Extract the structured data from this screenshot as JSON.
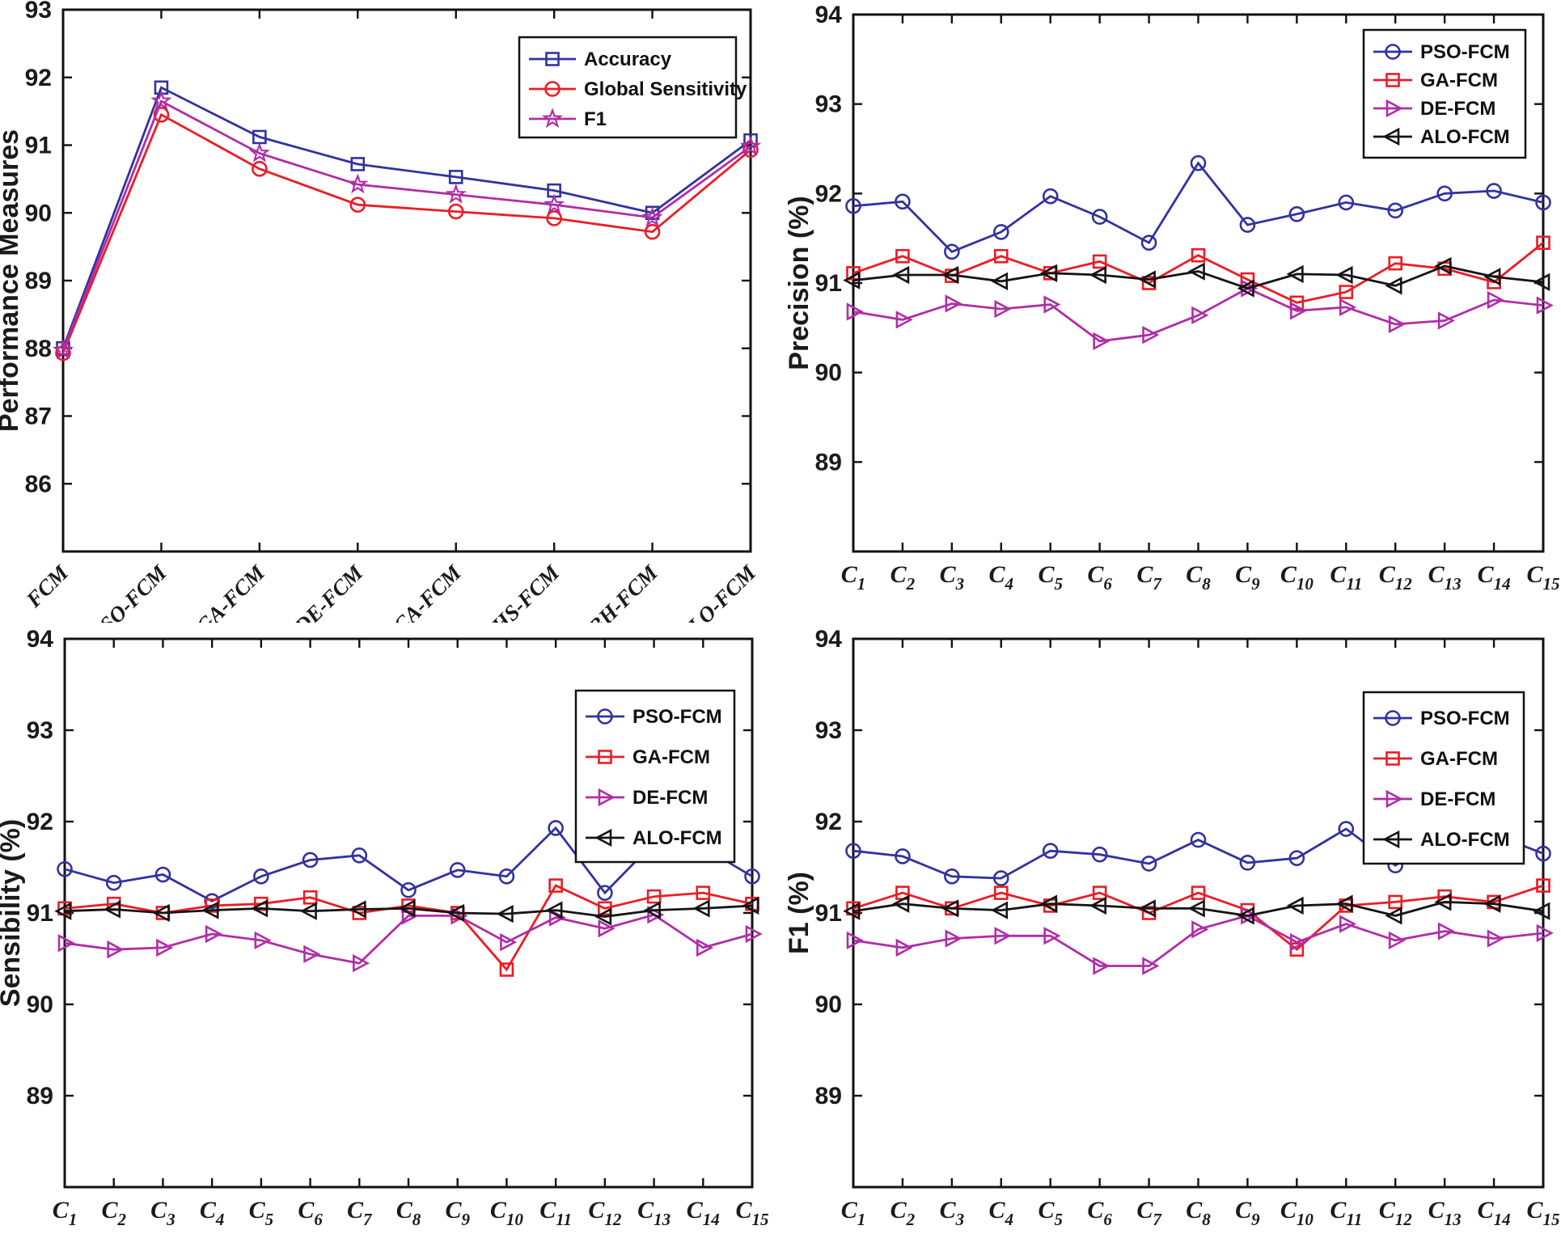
{
  "figure_background": "#ffffff",
  "colors": {
    "pso_fcm_blue": "#32329E",
    "ga_fcm_red": "#EC1C24",
    "de_fcm_magenta": "#B02DA8",
    "alo_fcm_black": "#141414",
    "axis": "#111111"
  },
  "chart_data": [
    {
      "id": "performance",
      "type": "line",
      "title": "",
      "ylabel": "Performance Measures",
      "xlabel": "",
      "categories": [
        "FCM",
        "PSO-FCM",
        "GA-FCM",
        "DE-FCM",
        "CA-FCM",
        "HS-FCM",
        "BH-FCM",
        "ALO-FCM"
      ],
      "ylim": [
        85,
        93
      ],
      "yticks": [
        86,
        87,
        88,
        89,
        90,
        91,
        92,
        93
      ],
      "grid": false,
      "legend_position": "upper-right-inside",
      "series": [
        {
          "name": "Accuracy",
          "color": "#32329E",
          "marker": "square",
          "values": [
            88.0,
            91.85,
            91.12,
            90.72,
            90.53,
            90.33,
            90.0,
            91.07
          ]
        },
        {
          "name": "Global Sensitivity",
          "color": "#EC1C24",
          "marker": "circle",
          "values": [
            87.93,
            91.45,
            90.65,
            90.12,
            90.02,
            89.92,
            89.72,
            90.93
          ]
        },
        {
          "name": "F1",
          "color": "#B02DA8",
          "marker": "star",
          "values": [
            87.97,
            91.65,
            90.88,
            90.42,
            90.27,
            90.12,
            89.93,
            90.98
          ]
        }
      ]
    },
    {
      "id": "precision",
      "type": "line",
      "title": "",
      "ylabel": "Precision (%)",
      "xlabel": "",
      "categories": [
        "C1",
        "C2",
        "C3",
        "C4",
        "C5",
        "C6",
        "C7",
        "C8",
        "C9",
        "C10",
        "C11",
        "C12",
        "C13",
        "C14",
        "C15"
      ],
      "ylim": [
        88,
        94
      ],
      "yticks": [
        89,
        90,
        91,
        92,
        93,
        94
      ],
      "grid": false,
      "legend_position": "upper-right-inside",
      "series": [
        {
          "name": "PSO-FCM",
          "color": "#32329E",
          "marker": "circle",
          "values": [
            91.86,
            91.91,
            91.35,
            91.57,
            91.97,
            91.74,
            91.45,
            92.34,
            91.65,
            91.77,
            91.9,
            91.81,
            92.0,
            92.03,
            91.9
          ]
        },
        {
          "name": "GA-FCM",
          "color": "#EC1C24",
          "marker": "square",
          "values": [
            91.11,
            91.3,
            91.08,
            91.3,
            91.11,
            91.24,
            91.0,
            91.31,
            91.04,
            90.78,
            90.9,
            91.22,
            91.16,
            91.01,
            91.45
          ]
        },
        {
          "name": "DE-FCM",
          "color": "#B02DA8",
          "marker": "triangle-right",
          "values": [
            90.68,
            90.59,
            90.77,
            90.71,
            90.76,
            90.35,
            90.42,
            90.64,
            90.94,
            90.69,
            90.73,
            90.54,
            90.58,
            90.81,
            90.75
          ]
        },
        {
          "name": "ALO-FCM",
          "color": "#141414",
          "marker": "triangle-left",
          "values": [
            91.03,
            91.09,
            91.09,
            91.02,
            91.11,
            91.09,
            91.04,
            91.13,
            90.94,
            91.1,
            91.09,
            90.97,
            91.19,
            91.07,
            91.01
          ]
        }
      ]
    },
    {
      "id": "sensibility",
      "type": "line",
      "title": "",
      "ylabel": "Sensibility (%)",
      "xlabel": "",
      "categories": [
        "C1",
        "C2",
        "C3",
        "C4",
        "C5",
        "C6",
        "C7",
        "C8",
        "C9",
        "C10",
        "C11",
        "C12",
        "C13",
        "C14",
        "C15"
      ],
      "ylim": [
        88,
        94
      ],
      "yticks": [
        89,
        90,
        91,
        92,
        93,
        94
      ],
      "grid": false,
      "legend_position": "upper-right-inside",
      "series": [
        {
          "name": "PSO-FCM",
          "color": "#32329E",
          "marker": "circle",
          "values": [
            91.48,
            91.33,
            91.42,
            91.13,
            91.4,
            91.58,
            91.63,
            91.25,
            91.47,
            91.4,
            91.93,
            91.22,
            91.77,
            91.72,
            91.4
          ]
        },
        {
          "name": "GA-FCM",
          "color": "#EC1C24",
          "marker": "square",
          "values": [
            91.05,
            91.1,
            91.0,
            91.08,
            91.1,
            91.17,
            91.0,
            91.08,
            91.0,
            90.38,
            91.3,
            91.05,
            91.18,
            91.22,
            91.1
          ]
        },
        {
          "name": "DE-FCM",
          "color": "#B02DA8",
          "marker": "triangle-right",
          "values": [
            90.67,
            90.6,
            90.62,
            90.77,
            90.7,
            90.55,
            90.45,
            90.97,
            90.97,
            90.68,
            90.95,
            90.83,
            90.98,
            90.62,
            90.77
          ]
        },
        {
          "name": "ALO-FCM",
          "color": "#141414",
          "marker": "triangle-left",
          "values": [
            91.02,
            91.04,
            91.0,
            91.03,
            91.05,
            91.02,
            91.04,
            91.05,
            91.0,
            90.99,
            91.03,
            90.96,
            91.03,
            91.05,
            91.08
          ]
        }
      ]
    },
    {
      "id": "f1",
      "type": "line",
      "title": "",
      "ylabel": "F1 (%)",
      "xlabel": "",
      "categories": [
        "C1",
        "C2",
        "C3",
        "C4",
        "C5",
        "C6",
        "C7",
        "C8",
        "C9",
        "C10",
        "C11",
        "C12",
        "C13",
        "C14",
        "C15"
      ],
      "ylim": [
        88,
        94
      ],
      "yticks": [
        89,
        90,
        91,
        92,
        93,
        94
      ],
      "grid": false,
      "legend_position": "upper-right-inside",
      "series": [
        {
          "name": "PSO-FCM",
          "color": "#32329E",
          "marker": "circle",
          "values": [
            91.68,
            91.62,
            91.4,
            91.38,
            91.68,
            91.64,
            91.54,
            91.8,
            91.55,
            91.6,
            91.92,
            91.52,
            91.88,
            91.86,
            91.65
          ]
        },
        {
          "name": "GA-FCM",
          "color": "#EC1C24",
          "marker": "square",
          "values": [
            91.05,
            91.22,
            91.05,
            91.22,
            91.08,
            91.22,
            91.0,
            91.22,
            91.03,
            90.6,
            91.08,
            91.12,
            91.18,
            91.12,
            91.3
          ]
        },
        {
          "name": "DE-FCM",
          "color": "#B02DA8",
          "marker": "triangle-right",
          "values": [
            90.7,
            90.62,
            90.72,
            90.75,
            90.75,
            90.42,
            90.42,
            90.82,
            90.97,
            90.68,
            90.88,
            90.7,
            90.8,
            90.72,
            90.78
          ]
        },
        {
          "name": "ALO-FCM",
          "color": "#141414",
          "marker": "triangle-left",
          "values": [
            91.02,
            91.1,
            91.05,
            91.03,
            91.1,
            91.08,
            91.05,
            91.05,
            90.97,
            91.08,
            91.1,
            90.97,
            91.12,
            91.1,
            91.02
          ]
        }
      ]
    }
  ]
}
